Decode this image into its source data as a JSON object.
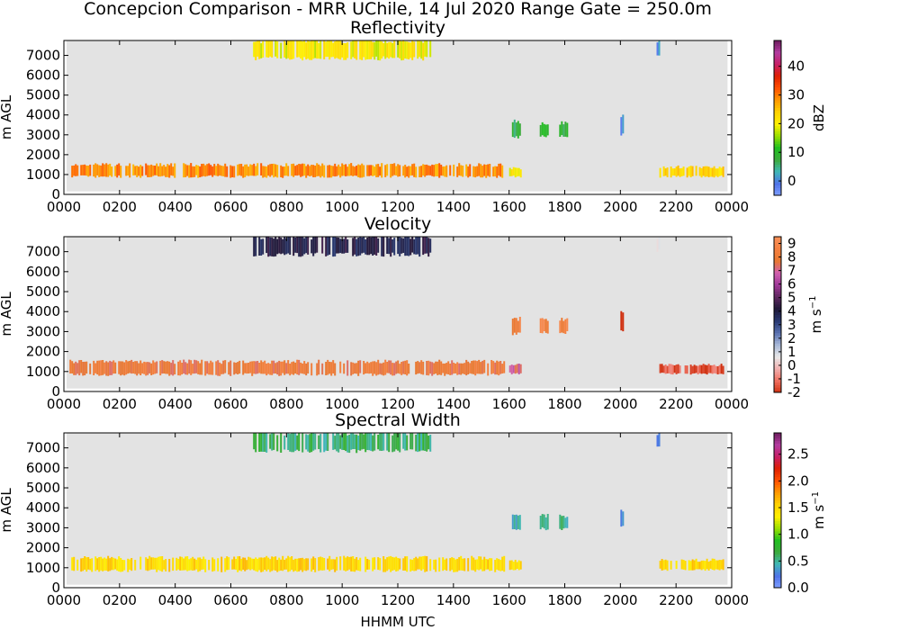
{
  "figure": {
    "suptitle": "Concepcion Comparison - MRR UChile, 14 Jul 2020 Range Gate = 250.0m",
    "xlabel": "HHMM UTC"
  },
  "chart_data": [
    {
      "type": "heatmap",
      "title": "Reflectivity",
      "ylabel": "m AGL",
      "colorbar_label": "dBZ",
      "colorbar_ticks": [
        "0",
        "10",
        "20",
        "30",
        "40"
      ],
      "colorbar_range": [
        -5,
        49
      ],
      "colormap": [
        "#7f9fff",
        "#4f73e8",
        "#3fb8b8",
        "#3caa3c",
        "#20c020",
        "#9ae000",
        "#fff000",
        "#ffd200",
        "#ff9a00",
        "#ff5000",
        "#e02000",
        "#c81e64",
        "#b43ca0",
        "#701e60"
      ],
      "x_tick_labels": [
        "0000",
        "0200",
        "0400",
        "0600",
        "0800",
        "1000",
        "1200",
        "1400",
        "1600",
        "1800",
        "2000",
        "2200",
        "0000"
      ],
      "y_tick_labels": [
        "0",
        "1000",
        "2000",
        "3000",
        "4000",
        "5000",
        "6000",
        "7000"
      ],
      "xlim_hours": [
        0,
        24
      ],
      "ylim": [
        0,
        7750
      ],
      "features": [
        {
          "name": "low-level band",
          "x": [
            0.2,
            15.8
          ],
          "y": [
            900,
            1450
          ],
          "value": 29
        },
        {
          "name": "low-level band",
          "x": [
            16.0,
            16.4
          ],
          "y": [
            900,
            1300
          ],
          "value": 20
        },
        {
          "name": "low-level band",
          "x": [
            21.4,
            23.7
          ],
          "y": [
            900,
            1350
          ],
          "value": 23
        },
        {
          "name": "upper cloud",
          "x": [
            6.8,
            13.2
          ],
          "y": [
            6850,
            7700
          ],
          "value": 20
        },
        {
          "name": "mid-level echo",
          "x": [
            16.1,
            16.4
          ],
          "y": [
            2900,
            3600
          ],
          "value": 8
        },
        {
          "name": "mid-level echo",
          "x": [
            17.1,
            17.4
          ],
          "y": [
            2950,
            3550
          ],
          "value": 10
        },
        {
          "name": "mid-level echo",
          "x": [
            17.8,
            18.1
          ],
          "y": [
            2950,
            3550
          ],
          "value": 8
        },
        {
          "name": "isolated echo",
          "x": [
            20.0,
            20.1
          ],
          "y": [
            3000,
            3900
          ],
          "value": 0
        },
        {
          "name": "isolated echo",
          "x": [
            21.3,
            21.4
          ],
          "y": [
            7050,
            7700
          ],
          "value": 0
        }
      ]
    },
    {
      "type": "heatmap",
      "title": "Velocity",
      "ylabel": "m $s^{-1}$",
      "colorbar_label": "m s",
      "colorbar_label_exp": "−1",
      "colorbar_ticks": [
        "-2",
        "-1",
        "0",
        "1",
        "2",
        "3",
        "4",
        "5",
        "6",
        "7",
        "8",
        "9"
      ],
      "colorbar_range": [
        -2,
        9.5
      ],
      "colormap": [
        "#d03010",
        "#f07060",
        "#f0b0b0",
        "#e8e8e8",
        "#a8b8d8",
        "#5870b0",
        "#283870",
        "#201838",
        "#602860",
        "#a03898",
        "#d060b0",
        "#e87830",
        "#f48040",
        "#f89058"
      ],
      "x_tick_labels": [
        "0000",
        "0200",
        "0400",
        "0600",
        "0800",
        "1000",
        "1200",
        "1400",
        "1600",
        "1800",
        "2000",
        "2200",
        "0000"
      ],
      "y_tick_labels": [
        "0",
        "1000",
        "2000",
        "3000",
        "4000",
        "5000",
        "6000",
        "7000"
      ],
      "xlim_hours": [
        0,
        24
      ],
      "ylim": [
        0,
        7750
      ],
      "features": [
        {
          "name": "low-level band",
          "x": [
            0.2,
            15.8
          ],
          "y": [
            850,
            1450
          ],
          "value": 8
        },
        {
          "name": "low-level band",
          "x": [
            16.0,
            16.4
          ],
          "y": [
            900,
            1300
          ],
          "value": 7
        },
        {
          "name": "low-level band",
          "x": [
            21.4,
            23.7
          ],
          "y": [
            900,
            1300
          ],
          "value": -1.5
        },
        {
          "name": "upper cloud",
          "x": [
            6.8,
            13.2
          ],
          "y": [
            6850,
            7700
          ],
          "value": 4
        },
        {
          "name": "mid-level echo",
          "x": [
            16.1,
            16.4
          ],
          "y": [
            2900,
            3600
          ],
          "value": 8.5
        },
        {
          "name": "mid-level echo",
          "x": [
            17.1,
            17.4
          ],
          "y": [
            2950,
            3550
          ],
          "value": 8.5
        },
        {
          "name": "mid-level echo",
          "x": [
            17.8,
            18.1
          ],
          "y": [
            2950,
            3550
          ],
          "value": 8.5
        },
        {
          "name": "isolated echo",
          "x": [
            20.0,
            20.1
          ],
          "y": [
            3000,
            3900
          ],
          "value": -2
        },
        {
          "name": "isolated echo",
          "x": [
            21.3,
            21.4
          ],
          "y": [
            7050,
            7700
          ],
          "value": 1
        }
      ]
    },
    {
      "type": "heatmap",
      "title": "Spectral Width",
      "ylabel": "m AGL",
      "colorbar_label": "m s",
      "colorbar_label_exp": "−1",
      "colorbar_ticks": [
        "0.0",
        "0.5",
        "1.0",
        "1.5",
        "2.0",
        "2.5"
      ],
      "colorbar_range": [
        0,
        2.9
      ],
      "colormap": [
        "#7f9fff",
        "#4f73e8",
        "#3fb8b8",
        "#3caa3c",
        "#20c020",
        "#9ae000",
        "#fff000",
        "#ffd200",
        "#ff9a00",
        "#ff5000",
        "#e02000",
        "#c81e64",
        "#b43ca0",
        "#701e60"
      ],
      "x_tick_labels": [
        "0000",
        "0200",
        "0400",
        "0600",
        "0800",
        "1000",
        "1200",
        "1400",
        "1600",
        "1800",
        "2000",
        "2200",
        "0000"
      ],
      "y_tick_labels": [
        "0",
        "1000",
        "2000",
        "3000",
        "4000",
        "5000",
        "6000",
        "7000"
      ],
      "xlim_hours": [
        0,
        24
      ],
      "ylim": [
        0,
        7750
      ],
      "features": [
        {
          "name": "low-level band",
          "x": [
            0.2,
            15.8
          ],
          "y": [
            850,
            1450
          ],
          "value": 1.5
        },
        {
          "name": "low-level band",
          "x": [
            16.0,
            16.4
          ],
          "y": [
            900,
            1300
          ],
          "value": 1.45
        },
        {
          "name": "low-level band",
          "x": [
            21.4,
            23.7
          ],
          "y": [
            900,
            1350
          ],
          "value": 1.5
        },
        {
          "name": "upper cloud",
          "x": [
            6.8,
            13.2
          ],
          "y": [
            6850,
            7700
          ],
          "value": 0.6
        },
        {
          "name": "mid-level echo",
          "x": [
            16.1,
            16.4
          ],
          "y": [
            2900,
            3600
          ],
          "value": 0.5
        },
        {
          "name": "mid-level echo",
          "x": [
            17.1,
            17.4
          ],
          "y": [
            2950,
            3550
          ],
          "value": 0.5
        },
        {
          "name": "mid-level echo",
          "x": [
            17.8,
            18.1
          ],
          "y": [
            2950,
            3550
          ],
          "value": 0.5
        },
        {
          "name": "isolated echo",
          "x": [
            20.0,
            20.1
          ],
          "y": [
            3000,
            3900
          ],
          "value": 0.3
        },
        {
          "name": "isolated echo",
          "x": [
            21.3,
            21.4
          ],
          "y": [
            7050,
            7700
          ],
          "value": 0.3
        }
      ]
    }
  ]
}
